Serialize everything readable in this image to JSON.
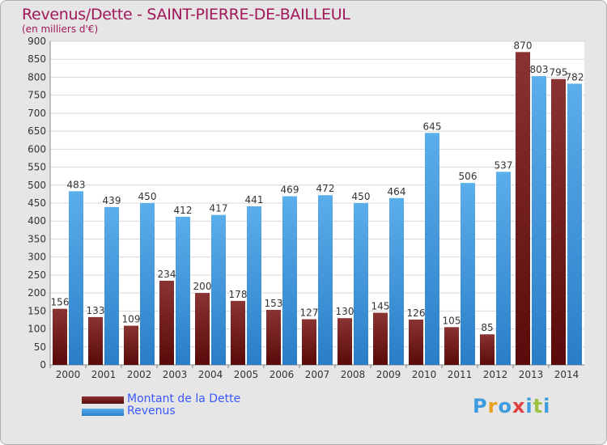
{
  "chart_data": {
    "type": "bar",
    "title": "Revenus/Dette - SAINT-PIERRE-DE-BAILLEUL",
    "subtitle": "(en milliers d'€)",
    "xlabel": "",
    "ylabel": "",
    "ylim": [
      0,
      900
    ],
    "yticks": [
      0,
      50,
      100,
      150,
      200,
      250,
      300,
      350,
      400,
      450,
      500,
      550,
      600,
      650,
      700,
      750,
      800,
      850,
      900
    ],
    "grid": true,
    "categories": [
      "2000",
      "2001",
      "2002",
      "2003",
      "2004",
      "2005",
      "2006",
      "2007",
      "2008",
      "2009",
      "2010",
      "2011",
      "2012",
      "2013",
      "2014"
    ],
    "series": [
      {
        "name": "Montant de la Dette",
        "color": "#7a1f1f",
        "values": [
          156,
          133,
          109,
          234,
          200,
          178,
          153,
          127,
          130,
          145,
          126,
          105,
          85,
          870,
          795
        ]
      },
      {
        "name": "Revenus",
        "color": "#4ea6e6",
        "values": [
          483,
          439,
          450,
          412,
          417,
          441,
          469,
          472,
          450,
          464,
          645,
          506,
          537,
          803,
          782
        ]
      }
    ],
    "legend_position": "bottom-left"
  },
  "logo": {
    "letters": [
      {
        "ch": "P",
        "color": "#3d9be0"
      },
      {
        "ch": "r",
        "color": "#e8a020"
      },
      {
        "ch": "o",
        "color": "#3d9be0"
      },
      {
        "ch": "x",
        "color": "#e04040"
      },
      {
        "ch": "i",
        "color": "#3d9be0"
      },
      {
        "ch": "t",
        "color": "#9bc23c"
      },
      {
        "ch": "i",
        "color": "#3d9be0"
      }
    ]
  }
}
